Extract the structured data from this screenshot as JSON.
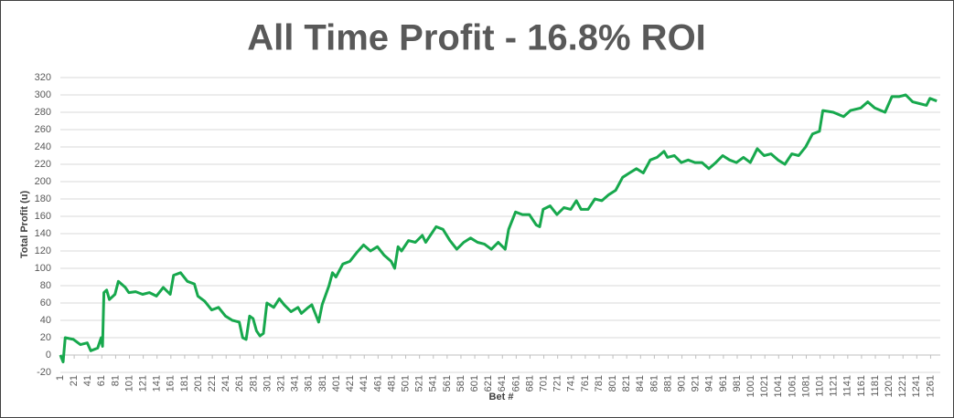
{
  "chart_data": {
    "type": "line",
    "title": "All Time Profit - 16.8% ROI",
    "x_label": "Bet #",
    "y_label": "Total Profit (u)",
    "xlim": [
      1,
      1275
    ],
    "xticks": [
      1,
      21,
      41,
      61,
      81,
      101,
      121,
      141,
      161,
      181,
      201,
      221,
      241,
      261,
      281,
      301,
      321,
      341,
      361,
      381,
      401,
      421,
      441,
      461,
      481,
      501,
      521,
      541,
      561,
      581,
      601,
      621,
      641,
      661,
      681,
      701,
      721,
      741,
      761,
      781,
      801,
      821,
      841,
      861,
      881,
      901,
      921,
      941,
      961,
      981,
      1001,
      1021,
      1041,
      1061,
      1081,
      1101,
      1121,
      1141,
      1161,
      1181,
      1201,
      1221,
      1241,
      1261
    ],
    "ylim": [
      -20,
      320
    ],
    "yticks": [
      -20,
      0,
      20,
      40,
      60,
      80,
      100,
      120,
      140,
      160,
      180,
      200,
      220,
      240,
      260,
      280,
      300,
      320
    ],
    "grid": true,
    "series": [
      {
        "name": "Total Profit",
        "color": "#17a84d",
        "x": [
          1,
          5,
          8,
          20,
          30,
          40,
          45,
          55,
          60,
          62,
          64,
          68,
          72,
          80,
          85,
          95,
          100,
          110,
          120,
          130,
          140,
          150,
          160,
          165,
          175,
          185,
          195,
          200,
          210,
          220,
          230,
          240,
          250,
          260,
          265,
          270,
          275,
          280,
          285,
          290,
          295,
          300,
          310,
          318,
          325,
          335,
          345,
          350,
          360,
          365,
          375,
          380,
          390,
          395,
          400,
          410,
          420,
          430,
          440,
          450,
          460,
          470,
          480,
          485,
          490,
          495,
          505,
          515,
          525,
          530,
          545,
          555,
          565,
          575,
          585,
          595,
          605,
          615,
          625,
          635,
          645,
          650,
          660,
          670,
          680,
          690,
          695,
          700,
          710,
          720,
          730,
          740,
          748,
          755,
          765,
          775,
          785,
          795,
          805,
          815,
          825,
          835,
          845,
          855,
          865,
          875,
          880,
          890,
          900,
          910,
          920,
          930,
          940,
          950,
          960,
          970,
          980,
          990,
          1000,
          1010,
          1020,
          1030,
          1040,
          1050,
          1060,
          1070,
          1080,
          1090,
          1100,
          1105,
          1120,
          1135,
          1145,
          1160,
          1170,
          1180,
          1195,
          1205,
          1215,
          1225,
          1235,
          1245,
          1255,
          1260,
          1270
        ],
        "values": [
          0,
          -8,
          20,
          18,
          12,
          14,
          5,
          8,
          20,
          10,
          72,
          75,
          64,
          70,
          85,
          78,
          72,
          73,
          70,
          72,
          68,
          78,
          70,
          92,
          95,
          85,
          82,
          68,
          62,
          52,
          55,
          45,
          40,
          38,
          20,
          18,
          45,
          42,
          28,
          22,
          25,
          60,
          55,
          65,
          58,
          50,
          55,
          48,
          55,
          58,
          38,
          58,
          80,
          95,
          90,
          105,
          108,
          118,
          127,
          120,
          125,
          115,
          108,
          100,
          125,
          120,
          132,
          130,
          138,
          130,
          148,
          145,
          132,
          122,
          130,
          135,
          130,
          128,
          122,
          130,
          122,
          145,
          165,
          162,
          162,
          150,
          148,
          168,
          172,
          162,
          170,
          168,
          178,
          168,
          168,
          180,
          178,
          185,
          190,
          205,
          210,
          215,
          210,
          225,
          228,
          235,
          228,
          230,
          222,
          225,
          222,
          222,
          215,
          222,
          230,
          225,
          222,
          228,
          222,
          238,
          230,
          232,
          225,
          220,
          232,
          230,
          240,
          255,
          258,
          282,
          280,
          275,
          282,
          285,
          292,
          285,
          280,
          298,
          298,
          300,
          292,
          290,
          288,
          296,
          293
        ]
      }
    ]
  }
}
